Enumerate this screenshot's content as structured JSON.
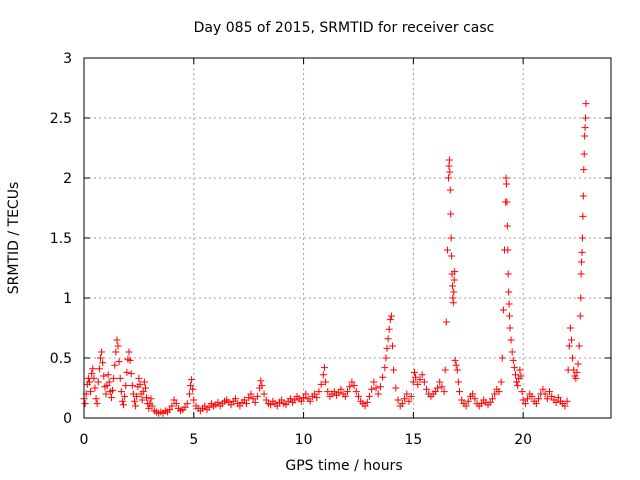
{
  "chart_data": {
    "type": "scatter",
    "title": "Day 085 of 2015, SRMTID for receiver casc",
    "xlabel": "GPS time / hours",
    "ylabel": "SRMTID / TECUs",
    "xlim": [
      0,
      24
    ],
    "ylim": [
      0,
      3
    ],
    "grid": true,
    "marker": "+",
    "marker_color": "#ff0000",
    "x_ticks": [
      0,
      5,
      10,
      15,
      20
    ],
    "x_tick_labels": [
      "0",
      "5",
      "10",
      "15",
      "20"
    ],
    "y_ticks": [
      0,
      0.5,
      1,
      1.5,
      2,
      2.5,
      3
    ],
    "y_tick_labels": [
      "0",
      "0.5",
      "1",
      "1.5",
      "2",
      "2.5",
      "3"
    ],
    "series": [
      {
        "name": "SRMTID",
        "points": [
          [
            0.0,
            0.16
          ],
          [
            0.05,
            0.12
          ],
          [
            0.1,
            0.2
          ],
          [
            0.15,
            0.28
          ],
          [
            0.2,
            0.33
          ],
          [
            0.25,
            0.3
          ],
          [
            0.3,
            0.22
          ],
          [
            0.35,
            0.37
          ],
          [
            0.4,
            0.41
          ],
          [
            0.45,
            0.33
          ],
          [
            0.5,
            0.25
          ],
          [
            0.55,
            0.16
          ],
          [
            0.6,
            0.12
          ],
          [
            0.65,
            0.3
          ],
          [
            0.7,
            0.41
          ],
          [
            0.75,
            0.5
          ],
          [
            0.8,
            0.55
          ],
          [
            0.85,
            0.46
          ],
          [
            0.9,
            0.35
          ],
          [
            0.95,
            0.26
          ],
          [
            1.0,
            0.2
          ],
          [
            1.05,
            0.27
          ],
          [
            1.1,
            0.36
          ],
          [
            1.15,
            0.3
          ],
          [
            1.2,
            0.22
          ],
          [
            1.25,
            0.17
          ],
          [
            1.3,
            0.23
          ],
          [
            1.35,
            0.33
          ],
          [
            1.4,
            0.44
          ],
          [
            1.45,
            0.55
          ],
          [
            1.5,
            0.65
          ],
          [
            1.55,
            0.6
          ],
          [
            1.6,
            0.47
          ],
          [
            1.65,
            0.33
          ],
          [
            1.7,
            0.22
          ],
          [
            1.75,
            0.14
          ],
          [
            1.8,
            0.11
          ],
          [
            1.85,
            0.18
          ],
          [
            1.9,
            0.27
          ],
          [
            1.95,
            0.38
          ],
          [
            2.0,
            0.49
          ],
          [
            2.05,
            0.55
          ],
          [
            2.1,
            0.48
          ],
          [
            2.15,
            0.37
          ],
          [
            2.2,
            0.27
          ],
          [
            2.25,
            0.2
          ],
          [
            2.3,
            0.14
          ],
          [
            2.35,
            0.1
          ],
          [
            2.4,
            0.18
          ],
          [
            2.45,
            0.26
          ],
          [
            2.5,
            0.33
          ],
          [
            2.55,
            0.28
          ],
          [
            2.6,
            0.2
          ],
          [
            2.65,
            0.15
          ],
          [
            2.7,
            0.22
          ],
          [
            2.75,
            0.3
          ],
          [
            2.8,
            0.25
          ],
          [
            2.85,
            0.17
          ],
          [
            2.9,
            0.12
          ],
          [
            2.95,
            0.08
          ],
          [
            3.0,
            0.12
          ],
          [
            3.05,
            0.16
          ],
          [
            3.1,
            0.1
          ],
          [
            3.2,
            0.06
          ],
          [
            3.3,
            0.05
          ],
          [
            3.4,
            0.04
          ],
          [
            3.5,
            0.05
          ],
          [
            3.6,
            0.04
          ],
          [
            3.7,
            0.06
          ],
          [
            3.8,
            0.05
          ],
          [
            3.9,
            0.07
          ],
          [
            4.0,
            0.1
          ],
          [
            4.1,
            0.15
          ],
          [
            4.2,
            0.12
          ],
          [
            4.3,
            0.08
          ],
          [
            4.4,
            0.06
          ],
          [
            4.5,
            0.07
          ],
          [
            4.6,
            0.09
          ],
          [
            4.7,
            0.12
          ],
          [
            4.8,
            0.2
          ],
          [
            4.85,
            0.27
          ],
          [
            4.9,
            0.32
          ],
          [
            4.95,
            0.24
          ],
          [
            5.0,
            0.15
          ],
          [
            5.1,
            0.1
          ],
          [
            5.2,
            0.08
          ],
          [
            5.3,
            0.06
          ],
          [
            5.4,
            0.08
          ],
          [
            5.5,
            0.1
          ],
          [
            5.6,
            0.07
          ],
          [
            5.7,
            0.09
          ],
          [
            5.8,
            0.12
          ],
          [
            5.9,
            0.1
          ],
          [
            6.0,
            0.11
          ],
          [
            6.1,
            0.13
          ],
          [
            6.2,
            0.1
          ],
          [
            6.3,
            0.12
          ],
          [
            6.4,
            0.14
          ],
          [
            6.5,
            0.15
          ],
          [
            6.6,
            0.13
          ],
          [
            6.7,
            0.11
          ],
          [
            6.8,
            0.14
          ],
          [
            6.9,
            0.16
          ],
          [
            7.0,
            0.12
          ],
          [
            7.1,
            0.1
          ],
          [
            7.2,
            0.13
          ],
          [
            7.3,
            0.15
          ],
          [
            7.4,
            0.12
          ],
          [
            7.5,
            0.17
          ],
          [
            7.6,
            0.2
          ],
          [
            7.7,
            0.16
          ],
          [
            7.8,
            0.13
          ],
          [
            7.9,
            0.18
          ],
          [
            8.0,
            0.25
          ],
          [
            8.05,
            0.31
          ],
          [
            8.1,
            0.27
          ],
          [
            8.2,
            0.2
          ],
          [
            8.3,
            0.15
          ],
          [
            8.4,
            0.12
          ],
          [
            8.5,
            0.11
          ],
          [
            8.6,
            0.14
          ],
          [
            8.7,
            0.12
          ],
          [
            8.8,
            0.1
          ],
          [
            8.9,
            0.13
          ],
          [
            9.0,
            0.15
          ],
          [
            9.1,
            0.12
          ],
          [
            9.2,
            0.11
          ],
          [
            9.3,
            0.14
          ],
          [
            9.4,
            0.16
          ],
          [
            9.5,
            0.13
          ],
          [
            9.6,
            0.15
          ],
          [
            9.7,
            0.18
          ],
          [
            9.8,
            0.16
          ],
          [
            9.9,
            0.14
          ],
          [
            10.0,
            0.17
          ],
          [
            10.1,
            0.2
          ],
          [
            10.2,
            0.16
          ],
          [
            10.3,
            0.14
          ],
          [
            10.4,
            0.18
          ],
          [
            10.5,
            0.2
          ],
          [
            10.6,
            0.17
          ],
          [
            10.7,
            0.22
          ],
          [
            10.8,
            0.28
          ],
          [
            10.9,
            0.36
          ],
          [
            10.95,
            0.42
          ],
          [
            11.0,
            0.3
          ],
          [
            11.1,
            0.22
          ],
          [
            11.2,
            0.18
          ],
          [
            11.3,
            0.2
          ],
          [
            11.4,
            0.22
          ],
          [
            11.5,
            0.19
          ],
          [
            11.6,
            0.21
          ],
          [
            11.7,
            0.24
          ],
          [
            11.8,
            0.2
          ],
          [
            11.9,
            0.18
          ],
          [
            12.0,
            0.22
          ],
          [
            12.1,
            0.26
          ],
          [
            12.2,
            0.3
          ],
          [
            12.3,
            0.27
          ],
          [
            12.4,
            0.22
          ],
          [
            12.5,
            0.18
          ],
          [
            12.6,
            0.14
          ],
          [
            12.7,
            0.12
          ],
          [
            12.8,
            0.1
          ],
          [
            12.9,
            0.13
          ],
          [
            13.0,
            0.18
          ],
          [
            13.1,
            0.24
          ],
          [
            13.2,
            0.3
          ],
          [
            13.3,
            0.25
          ],
          [
            13.4,
            0.2
          ],
          [
            13.5,
            0.26
          ],
          [
            13.6,
            0.34
          ],
          [
            13.7,
            0.42
          ],
          [
            13.75,
            0.5
          ],
          [
            13.8,
            0.58
          ],
          [
            13.85,
            0.66
          ],
          [
            13.9,
            0.74
          ],
          [
            13.95,
            0.82
          ],
          [
            14.0,
            0.85
          ],
          [
            14.05,
            0.6
          ],
          [
            14.1,
            0.4
          ],
          [
            14.2,
            0.25
          ],
          [
            14.3,
            0.15
          ],
          [
            14.4,
            0.1
          ],
          [
            14.5,
            0.12
          ],
          [
            14.6,
            0.16
          ],
          [
            14.7,
            0.2
          ],
          [
            14.8,
            0.14
          ],
          [
            14.9,
            0.18
          ],
          [
            15.0,
            0.3
          ],
          [
            15.05,
            0.38
          ],
          [
            15.1,
            0.34
          ],
          [
            15.2,
            0.28
          ],
          [
            15.3,
            0.32
          ],
          [
            15.4,
            0.36
          ],
          [
            15.5,
            0.3
          ],
          [
            15.6,
            0.24
          ],
          [
            15.7,
            0.2
          ],
          [
            15.8,
            0.18
          ],
          [
            15.9,
            0.2
          ],
          [
            16.0,
            0.22
          ],
          [
            16.1,
            0.25
          ],
          [
            16.2,
            0.3
          ],
          [
            16.3,
            0.26
          ],
          [
            16.4,
            0.22
          ],
          [
            16.45,
            0.4
          ],
          [
            16.5,
            0.8
          ],
          [
            16.55,
            1.4
          ],
          [
            16.6,
            2.0
          ],
          [
            16.62,
            2.1
          ],
          [
            16.64,
            2.15
          ],
          [
            16.66,
            2.05
          ],
          [
            16.68,
            1.9
          ],
          [
            16.7,
            1.7
          ],
          [
            16.72,
            1.5
          ],
          [
            16.74,
            1.35
          ],
          [
            16.76,
            1.2
          ],
          [
            16.78,
            1.1
          ],
          [
            16.8,
            1.0
          ],
          [
            16.82,
            0.96
          ],
          [
            16.84,
            1.05
          ],
          [
            16.86,
            1.15
          ],
          [
            16.88,
            1.22
          ],
          [
            16.9,
            0.48
          ],
          [
            16.95,
            0.44
          ],
          [
            17.0,
            0.4
          ],
          [
            17.05,
            0.3
          ],
          [
            17.1,
            0.22
          ],
          [
            17.2,
            0.15
          ],
          [
            17.3,
            0.12
          ],
          [
            17.4,
            0.1
          ],
          [
            17.5,
            0.14
          ],
          [
            17.6,
            0.18
          ],
          [
            17.7,
            0.2
          ],
          [
            17.8,
            0.16
          ],
          [
            17.9,
            0.12
          ],
          [
            18.0,
            0.1
          ],
          [
            18.1,
            0.12
          ],
          [
            18.2,
            0.15
          ],
          [
            18.3,
            0.13
          ],
          [
            18.4,
            0.11
          ],
          [
            18.5,
            0.13
          ],
          [
            18.6,
            0.16
          ],
          [
            18.7,
            0.2
          ],
          [
            18.8,
            0.24
          ],
          [
            18.9,
            0.22
          ],
          [
            19.0,
            0.3
          ],
          [
            19.05,
            0.5
          ],
          [
            19.1,
            0.9
          ],
          [
            19.15,
            1.4
          ],
          [
            19.2,
            1.8
          ],
          [
            19.22,
            2.0
          ],
          [
            19.24,
            1.95
          ],
          [
            19.26,
            1.8
          ],
          [
            19.28,
            1.6
          ],
          [
            19.3,
            1.4
          ],
          [
            19.32,
            1.2
          ],
          [
            19.34,
            1.05
          ],
          [
            19.36,
            0.95
          ],
          [
            19.38,
            0.85
          ],
          [
            19.4,
            0.75
          ],
          [
            19.45,
            0.65
          ],
          [
            19.5,
            0.55
          ],
          [
            19.55,
            0.48
          ],
          [
            19.6,
            0.42
          ],
          [
            19.65,
            0.36
          ],
          [
            19.7,
            0.3
          ],
          [
            19.75,
            0.27
          ],
          [
            19.8,
            0.33
          ],
          [
            19.85,
            0.4
          ],
          [
            19.9,
            0.35
          ],
          [
            19.95,
            0.22
          ],
          [
            20.0,
            0.15
          ],
          [
            20.1,
            0.12
          ],
          [
            20.2,
            0.16
          ],
          [
            20.3,
            0.2
          ],
          [
            20.4,
            0.18
          ],
          [
            20.5,
            0.14
          ],
          [
            20.6,
            0.12
          ],
          [
            20.7,
            0.16
          ],
          [
            20.8,
            0.2
          ],
          [
            20.9,
            0.24
          ],
          [
            21.0,
            0.2
          ],
          [
            21.1,
            0.16
          ],
          [
            21.2,
            0.22
          ],
          [
            21.3,
            0.18
          ],
          [
            21.4,
            0.15
          ],
          [
            21.5,
            0.13
          ],
          [
            21.6,
            0.17
          ],
          [
            21.7,
            0.14
          ],
          [
            21.8,
            0.12
          ],
          [
            21.9,
            0.1
          ],
          [
            22.0,
            0.14
          ],
          [
            22.05,
            0.4
          ],
          [
            22.1,
            0.6
          ],
          [
            22.15,
            0.75
          ],
          [
            22.2,
            0.65
          ],
          [
            22.25,
            0.5
          ],
          [
            22.3,
            0.4
          ],
          [
            22.35,
            0.35
          ],
          [
            22.4,
            0.33
          ],
          [
            22.45,
            0.38
          ],
          [
            22.5,
            0.45
          ],
          [
            22.55,
            0.6
          ],
          [
            22.6,
            0.85
          ],
          [
            22.62,
            1.0
          ],
          [
            22.64,
            1.2
          ],
          [
            22.66,
            1.3
          ],
          [
            22.68,
            1.38
          ],
          [
            22.7,
            1.5
          ],
          [
            22.72,
            1.68
          ],
          [
            22.74,
            1.85
          ],
          [
            22.76,
            2.07
          ],
          [
            22.78,
            2.2
          ],
          [
            22.8,
            2.35
          ],
          [
            22.82,
            2.42
          ],
          [
            22.84,
            2.5
          ],
          [
            22.86,
            2.62
          ]
        ]
      }
    ]
  }
}
